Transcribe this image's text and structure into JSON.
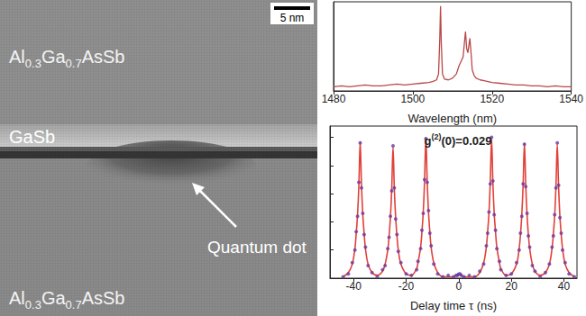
{
  "micrograph": {
    "top_layer": "Al0.3Ga0.7AsSb",
    "middle_layer": "GaSb",
    "bottom_layer": "Al0.3Ga0.7AsSb",
    "annotation": "Quantum dot",
    "scale_bar": "5 nm"
  },
  "chart_data": [
    {
      "type": "line",
      "x_label": "Wavelength (nm)",
      "x": [
        1480,
        1482,
        1484,
        1486,
        1488,
        1490,
        1492,
        1494,
        1496,
        1498,
        1500,
        1502,
        1504,
        1505,
        1506,
        1506.5,
        1506.8,
        1507,
        1507.2,
        1507.5,
        1508,
        1509,
        1510,
        1511,
        1511.7,
        1512.2,
        1512.7,
        1513.1,
        1513.3,
        1513.6,
        1513.9,
        1514.2,
        1514.4,
        1514.7,
        1515,
        1515.5,
        1516,
        1517,
        1518,
        1519,
        1520,
        1522,
        1524,
        1526,
        1528,
        1530,
        1532,
        1534,
        1536,
        1538,
        1540
      ],
      "values": [
        0.05,
        0.06,
        0.05,
        0.06,
        0.07,
        0.06,
        0.06,
        0.07,
        0.08,
        0.07,
        0.08,
        0.09,
        0.1,
        0.11,
        0.13,
        0.2,
        0.6,
        1.0,
        0.55,
        0.2,
        0.14,
        0.13,
        0.15,
        0.2,
        0.3,
        0.35,
        0.4,
        0.6,
        0.7,
        0.5,
        0.45,
        0.55,
        0.62,
        0.45,
        0.25,
        0.18,
        0.15,
        0.13,
        0.12,
        0.11,
        0.1,
        0.09,
        0.08,
        0.07,
        0.07,
        0.06,
        0.06,
        0.05,
        0.06,
        0.05,
        0.05
      ],
      "color": "#b94848",
      "xlim": [
        1480,
        1540
      ],
      "xticks": [
        1480,
        1500,
        1520,
        1540
      ],
      "ylim": [
        0,
        1.05
      ],
      "grid": false,
      "tick_labels": "x"
    },
    {
      "type": "line",
      "title": "g(2)(0)=0.029",
      "x_label": "Delay time τ (ns)",
      "x": [
        -44,
        -42,
        -40.5,
        -39.5,
        -39,
        -38.5,
        -38,
        -37.5,
        -37,
        -36.5,
        -36,
        -35.5,
        -34.5,
        -33,
        -31,
        -29,
        -28,
        -27,
        -26.5,
        -26,
        -25.5,
        -25,
        -24.5,
        -24,
        -23.5,
        -23,
        -22,
        -20,
        -18,
        -16,
        -15.5,
        -14.5,
        -14,
        -13.5,
        -13,
        -12.5,
        -12,
        -11.5,
        -11,
        -10.5,
        -9.5,
        -8,
        -6,
        -4,
        -2,
        -1,
        -0.5,
        0,
        0.5,
        1,
        2,
        4,
        6,
        8,
        9.5,
        10.5,
        11,
        11.5,
        12,
        12.5,
        13,
        13.5,
        14,
        14.5,
        15.5,
        16,
        18,
        20,
        22,
        23,
        23.5,
        24,
        24.5,
        25,
        25.5,
        26,
        26.5,
        27,
        28,
        29,
        31,
        33,
        34.5,
        35.5,
        36,
        36.5,
        37,
        37.5,
        38,
        38.5,
        39,
        39.5,
        40.5,
        42,
        44
      ],
      "series": [
        {
          "type": "line",
          "color": "#e2403a",
          "line_style": "solid",
          "values": [
            0.01,
            0.04,
            0.1,
            0.21,
            0.32,
            0.45,
            0.66,
            0.97,
            0.66,
            0.45,
            0.32,
            0.21,
            0.1,
            0.04,
            0.02,
            0.05,
            0.1,
            0.2,
            0.3,
            0.43,
            0.63,
            0.93,
            0.63,
            0.43,
            0.3,
            0.2,
            0.1,
            0.03,
            0.02,
            0.07,
            0.11,
            0.22,
            0.33,
            0.47,
            0.69,
            1.0,
            0.69,
            0.47,
            0.33,
            0.22,
            0.11,
            0.04,
            0.01,
            0.01,
            0.01,
            0.02,
            0.025,
            0.029,
            0.025,
            0.02,
            0.01,
            0.01,
            0.01,
            0.04,
            0.11,
            0.22,
            0.33,
            0.46,
            0.68,
            0.99,
            0.68,
            0.46,
            0.33,
            0.22,
            0.11,
            0.07,
            0.02,
            0.03,
            0.1,
            0.21,
            0.31,
            0.45,
            0.66,
            0.96,
            0.66,
            0.45,
            0.31,
            0.21,
            0.1,
            0.05,
            0.02,
            0.04,
            0.1,
            0.21,
            0.31,
            0.44,
            0.65,
            0.95,
            0.65,
            0.44,
            0.31,
            0.21,
            0.1,
            0.04,
            0.01
          ]
        },
        {
          "type": "scatter",
          "color": "#6a3aa0",
          "marker": "circle",
          "values": [
            0.01,
            0.03,
            0.11,
            0.2,
            0.33,
            0.44,
            0.68,
            0.96,
            0.64,
            0.46,
            0.31,
            0.22,
            0.09,
            0.04,
            0.01,
            0.06,
            0.09,
            0.21,
            0.29,
            0.44,
            0.62,
            0.94,
            0.64,
            0.42,
            0.31,
            0.19,
            0.11,
            0.03,
            0.02,
            0.06,
            0.12,
            0.21,
            0.34,
            0.46,
            0.7,
            0.99,
            0.68,
            0.48,
            0.32,
            0.23,
            0.1,
            0.03,
            0.01,
            0.02,
            0.01,
            0.02,
            0.02,
            0.029,
            0.03,
            0.02,
            0.01,
            0.02,
            0.01,
            0.05,
            0.1,
            0.23,
            0.32,
            0.47,
            0.67,
            1.0,
            0.69,
            0.45,
            0.34,
            0.21,
            0.12,
            0.06,
            0.02,
            0.03,
            0.11,
            0.2,
            0.32,
            0.44,
            0.67,
            0.95,
            0.65,
            0.46,
            0.3,
            0.22,
            0.09,
            0.05,
            0.01,
            0.04,
            0.1,
            0.22,
            0.3,
            0.45,
            0.64,
            0.96,
            0.66,
            0.43,
            0.32,
            0.2,
            0.11,
            0.03,
            0.01
          ]
        }
      ],
      "xlim": [
        -49,
        45
      ],
      "xticks": [
        -40,
        -20,
        0,
        20,
        40
      ],
      "ylim": [
        0,
        1.08
      ],
      "yticks": [
        0,
        0.2,
        0.4,
        0.6,
        0.8,
        1.0
      ],
      "grid": false,
      "tick_labels": "x"
    }
  ]
}
